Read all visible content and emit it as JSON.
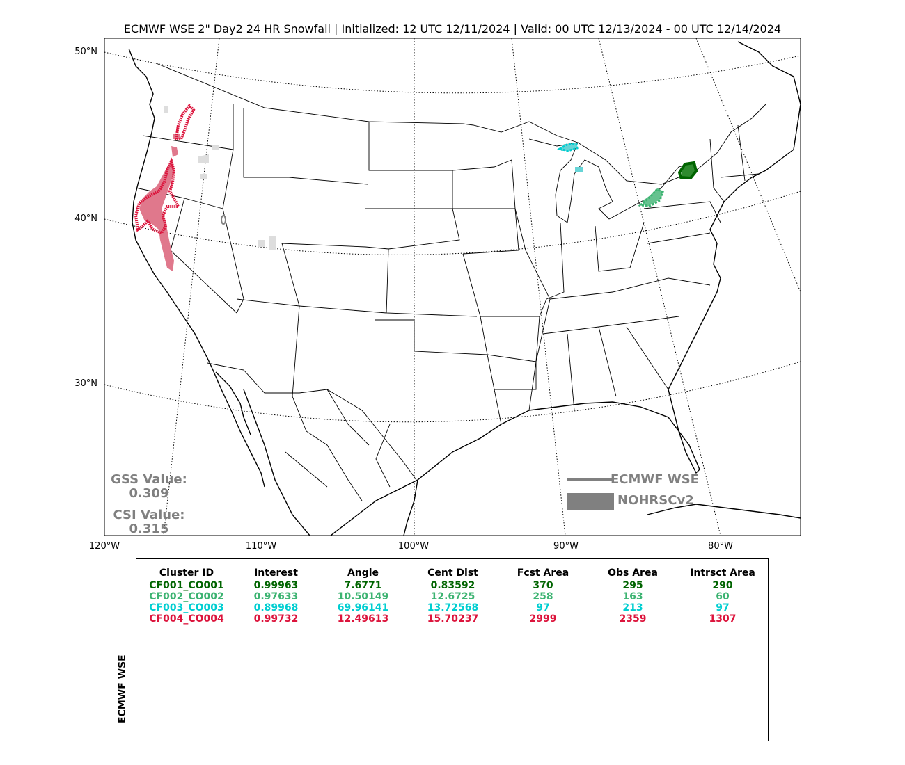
{
  "title": "ECMWF WSE 2\" Day2 24 HR Snowfall | Initialized: 12 UTC 12/11/2024 | Valid: 00 UTC 12/13/2024 - 00 UTC 12/14/2024",
  "lat_labels": [
    "50°N",
    "40°N",
    "30°N"
  ],
  "lon_labels": [
    "120°W",
    "110°W",
    "100°W",
    "90°W",
    "80°W"
  ],
  "scores": {
    "gss_label": "GSS Value:",
    "gss_value": "0.309",
    "csi_label": "CSI Value:",
    "csi_value": "0.315"
  },
  "legend": {
    "line_label": "ECMWF WSE",
    "fill_label": "NOHRSCv2",
    "color": "#808080"
  },
  "table": {
    "side_label": "ECMWF WSE",
    "headers": [
      "Cluster ID",
      "Interest",
      "Angle",
      "Cent Dist",
      "Fcst Area",
      "Obs Area",
      "Intrsct Area"
    ],
    "rows": [
      {
        "color": "#006400",
        "cells": [
          "CF001_CO001",
          "0.99963",
          "7.6771",
          "0.83592",
          "370",
          "295",
          "290"
        ]
      },
      {
        "color": "#3cb371",
        "cells": [
          "CF002_CO002",
          "0.97633",
          "10.50149",
          "12.6725",
          "258",
          "163",
          "60"
        ]
      },
      {
        "color": "#00ced1",
        "cells": [
          "CF003_CO003",
          "0.89968",
          "69.96141",
          "13.72568",
          "97",
          "213",
          "97"
        ]
      },
      {
        "color": "#dc143c",
        "cells": [
          "CF004_CO004",
          "0.99732",
          "12.49613",
          "15.70237",
          "2999",
          "2359",
          "1307"
        ]
      }
    ]
  }
}
